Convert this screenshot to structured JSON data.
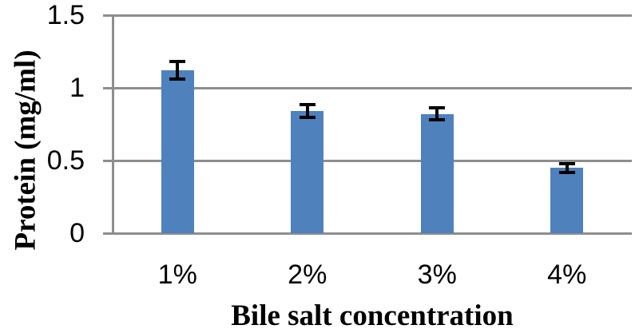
{
  "chart_data": {
    "type": "bar",
    "title": "",
    "categories": [
      "1%",
      "2%",
      "3%",
      "4%"
    ],
    "values": [
      1.12,
      0.84,
      0.82,
      0.45
    ],
    "errors": [
      0.06,
      0.045,
      0.04,
      0.03
    ],
    "xlabel": "Bile salt concentration",
    "ylabel": "Protein (mg/ml)",
    "ylim": [
      0,
      1.5
    ],
    "ytick_step": 0.5,
    "ytick_labels": [
      "0",
      "0.5",
      "1",
      "1.5"
    ],
    "grid": true,
    "legend": "none",
    "bar_color": "#4f81bd",
    "grid_color": "#8e8e8e",
    "axis_color": "#8e8e8e",
    "error_color": "#000000",
    "text_color": "#000000",
    "background": "#ffffff"
  }
}
